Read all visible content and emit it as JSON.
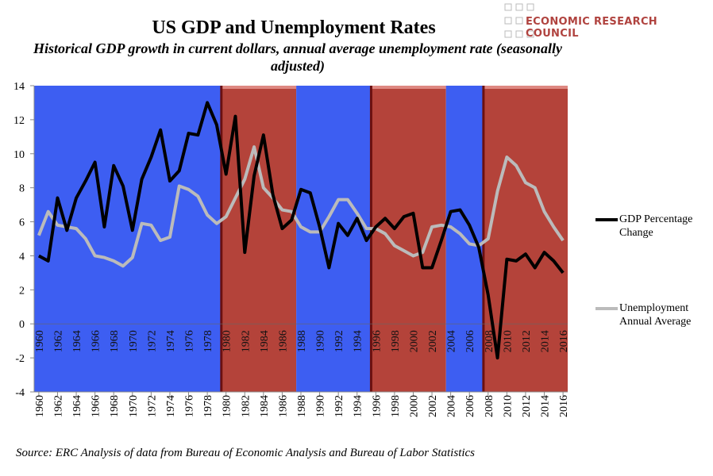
{
  "chart_data": {
    "type": "line",
    "title": "US GDP and Unemployment Rates",
    "subtitle": "Historical GDP growth in current dollars, annual average unemployment rate (seasonally adjusted)",
    "source": "Source: ERC Analysis of data from Bureau of Economic Analysis and Bureau of Labor Statistics",
    "logo": "ECONOMIC RESEARCH COUNCIL",
    "x": [
      1960,
      1961,
      1962,
      1963,
      1964,
      1965,
      1966,
      1967,
      1968,
      1969,
      1970,
      1971,
      1972,
      1973,
      1974,
      1975,
      1976,
      1977,
      1978,
      1979,
      1980,
      1981,
      1982,
      1983,
      1984,
      1985,
      1986,
      1987,
      1988,
      1989,
      1990,
      1991,
      1992,
      1993,
      1994,
      1995,
      1996,
      1997,
      1998,
      1999,
      2000,
      2001,
      2002,
      2003,
      2004,
      2005,
      2006,
      2007,
      2008,
      2009,
      2010,
      2011,
      2012,
      2013,
      2014,
      2015,
      2016
    ],
    "series": [
      {
        "name": "GDP Percentage Change",
        "color": "#000000",
        "values": [
          4.0,
          3.7,
          7.4,
          5.5,
          7.4,
          8.4,
          9.5,
          5.7,
          9.3,
          8.1,
          5.5,
          8.5,
          9.8,
          11.4,
          8.4,
          9.0,
          11.2,
          11.1,
          13.0,
          11.7,
          8.8,
          12.2,
          4.2,
          8.7,
          11.1,
          7.6,
          5.6,
          6.1,
          7.9,
          7.7,
          5.7,
          3.3,
          5.9,
          5.2,
          6.2,
          4.9,
          5.7,
          6.2,
          5.6,
          6.3,
          6.5,
          3.3,
          3.3,
          4.9,
          6.6,
          6.7,
          5.8,
          4.5,
          1.7,
          -2.0,
          3.8,
          3.7,
          4.1,
          3.3,
          4.2,
          3.7,
          3.0
        ]
      },
      {
        "name": "Unemployment Annual Average",
        "color": "#bbbbbb",
        "values": [
          5.2,
          6.6,
          5.8,
          5.7,
          5.6,
          5.0,
          4.0,
          3.9,
          3.7,
          3.4,
          3.9,
          5.9,
          5.8,
          4.9,
          5.1,
          8.1,
          7.9,
          7.5,
          6.4,
          5.9,
          6.3,
          7.4,
          8.5,
          10.4,
          8.0,
          7.4,
          6.7,
          6.6,
          5.7,
          5.4,
          5.4,
          6.3,
          7.3,
          7.3,
          6.5,
          5.6,
          5.6,
          5.3,
          4.6,
          4.3,
          4.0,
          4.2,
          5.7,
          5.8,
          5.7,
          5.3,
          4.7,
          4.6,
          5.0,
          7.8,
          9.8,
          9.3,
          8.3,
          8.0,
          6.6,
          5.7,
          4.9
        ]
      }
    ],
    "bands": [
      {
        "start": 1960,
        "end": 1979,
        "color": "#3d5ef2"
      },
      {
        "start": 1980,
        "end": 1987,
        "color": "#b4433a"
      },
      {
        "start": 1988,
        "end": 1995,
        "color": "#3d5ef2"
      },
      {
        "start": 1996,
        "end": 2003,
        "color": "#b4433a"
      },
      {
        "start": 2004,
        "end": 2007,
        "color": "#3d5ef2"
      },
      {
        "start": 2008,
        "end": 2016,
        "color": "#b4433a"
      }
    ],
    "xlim": [
      1959.5,
      2016.5
    ],
    "xticks": [
      1960,
      1962,
      1964,
      1966,
      1968,
      1970,
      1972,
      1974,
      1976,
      1978,
      1980,
      1982,
      1984,
      1986,
      1988,
      1990,
      1992,
      1994,
      1996,
      1998,
      2000,
      2002,
      2004,
      2006,
      2008,
      2010,
      2012,
      2014,
      2016
    ],
    "ylim": [
      -4,
      14
    ],
    "yticks": [
      -4,
      -2,
      0,
      2,
      4,
      6,
      8,
      10,
      12,
      14
    ]
  }
}
